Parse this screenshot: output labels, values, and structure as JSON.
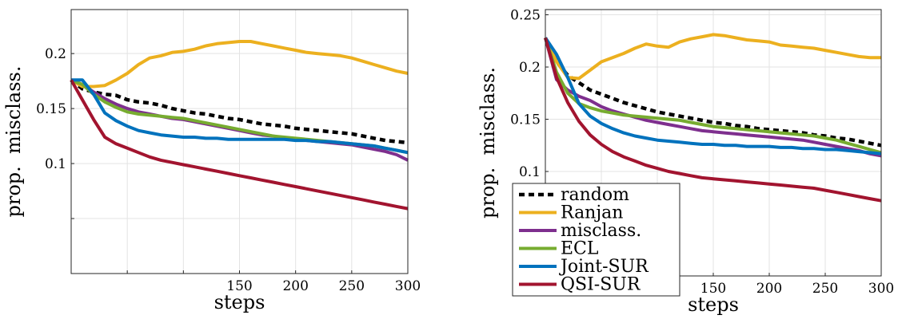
{
  "chart_data": [
    {
      "type": "line",
      "xlabel": "steps",
      "ylabel": "prop.  misclass.",
      "xlim": [
        0,
        300
      ],
      "ylim": [
        0,
        0.24
      ],
      "xticks": [
        150,
        200,
        250,
        300
      ],
      "yticks": [
        0.05,
        0.1,
        0.15,
        0.2
      ],
      "ytick_labels": [
        "",
        "0.1",
        "0.15",
        "0.2"
      ],
      "grid": true,
      "series": [
        {
          "name": "random",
          "color": "#000000",
          "dash": true,
          "x": [
            0,
            10,
            20,
            30,
            40,
            50,
            60,
            70,
            80,
            90,
            100,
            110,
            120,
            130,
            140,
            150,
            160,
            170,
            180,
            190,
            200,
            210,
            220,
            230,
            240,
            250,
            260,
            270,
            280,
            290,
            300
          ],
          "y": [
            0.176,
            0.168,
            0.165,
            0.163,
            0.162,
            0.158,
            0.156,
            0.155,
            0.153,
            0.15,
            0.148,
            0.146,
            0.145,
            0.143,
            0.141,
            0.14,
            0.138,
            0.136,
            0.135,
            0.134,
            0.132,
            0.131,
            0.13,
            0.129,
            0.128,
            0.127,
            0.125,
            0.123,
            0.121,
            0.12,
            0.119
          ]
        },
        {
          "name": "Ranjan",
          "color": "#ECB01F",
          "dash": false,
          "x": [
            0,
            10,
            20,
            30,
            40,
            50,
            60,
            70,
            80,
            90,
            100,
            110,
            120,
            130,
            140,
            150,
            160,
            170,
            180,
            190,
            200,
            210,
            220,
            230,
            240,
            250,
            260,
            270,
            280,
            290,
            300
          ],
          "y": [
            0.176,
            0.17,
            0.17,
            0.171,
            0.176,
            0.182,
            0.19,
            0.196,
            0.198,
            0.201,
            0.202,
            0.204,
            0.207,
            0.209,
            0.21,
            0.211,
            0.211,
            0.209,
            0.207,
            0.205,
            0.203,
            0.201,
            0.2,
            0.199,
            0.198,
            0.196,
            0.193,
            0.19,
            0.187,
            0.184,
            0.182
          ]
        },
        {
          "name": "misclass.",
          "color": "#7E2F8E",
          "dash": false,
          "x": [
            0,
            10,
            20,
            30,
            40,
            50,
            60,
            70,
            80,
            90,
            100,
            110,
            120,
            130,
            140,
            150,
            160,
            170,
            180,
            190,
            200,
            210,
            220,
            230,
            240,
            250,
            260,
            270,
            280,
            290,
            300
          ],
          "y": [
            0.176,
            0.172,
            0.165,
            0.159,
            0.154,
            0.15,
            0.147,
            0.145,
            0.143,
            0.141,
            0.14,
            0.138,
            0.136,
            0.134,
            0.132,
            0.13,
            0.128,
            0.126,
            0.125,
            0.123,
            0.122,
            0.121,
            0.12,
            0.119,
            0.118,
            0.117,
            0.115,
            0.113,
            0.111,
            0.108,
            0.103
          ]
        },
        {
          "name": "ECL",
          "color": "#77AC30",
          "dash": false,
          "x": [
            0,
            10,
            20,
            30,
            40,
            50,
            60,
            70,
            80,
            90,
            100,
            110,
            120,
            130,
            140,
            150,
            160,
            170,
            180,
            190,
            200,
            210,
            220,
            230,
            240,
            250,
            260,
            270,
            280,
            290,
            300
          ],
          "y": [
            0.176,
            0.172,
            0.163,
            0.156,
            0.151,
            0.147,
            0.145,
            0.144,
            0.143,
            0.142,
            0.141,
            0.139,
            0.137,
            0.135,
            0.133,
            0.131,
            0.129,
            0.127,
            0.125,
            0.124,
            0.123,
            0.122,
            0.121,
            0.12,
            0.119,
            0.118,
            0.117,
            0.116,
            0.114,
            0.112,
            0.11
          ]
        },
        {
          "name": "Joint-SUR",
          "color": "#0072BD",
          "dash": false,
          "x": [
            0,
            10,
            20,
            30,
            40,
            50,
            60,
            70,
            80,
            90,
            100,
            110,
            120,
            130,
            140,
            150,
            160,
            170,
            180,
            190,
            200,
            210,
            220,
            230,
            240,
            250,
            260,
            270,
            280,
            290,
            300
          ],
          "y": [
            0.176,
            0.176,
            0.163,
            0.146,
            0.139,
            0.134,
            0.13,
            0.128,
            0.126,
            0.125,
            0.124,
            0.124,
            0.123,
            0.123,
            0.122,
            0.122,
            0.122,
            0.122,
            0.122,
            0.122,
            0.121,
            0.121,
            0.12,
            0.12,
            0.119,
            0.118,
            0.117,
            0.116,
            0.114,
            0.112,
            0.11
          ]
        },
        {
          "name": "QSI-SUR",
          "color": "#A2142F",
          "dash": false,
          "x": [
            0,
            10,
            20,
            30,
            40,
            50,
            60,
            70,
            80,
            90,
            100,
            110,
            120,
            130,
            140,
            150,
            160,
            170,
            180,
            190,
            200,
            210,
            220,
            230,
            240,
            250,
            260,
            270,
            280,
            290,
            300
          ],
          "y": [
            0.176,
            0.158,
            0.14,
            0.124,
            0.118,
            0.114,
            0.11,
            0.106,
            0.103,
            0.101,
            0.099,
            0.097,
            0.095,
            0.093,
            0.091,
            0.089,
            0.087,
            0.085,
            0.083,
            0.081,
            0.079,
            0.077,
            0.075,
            0.073,
            0.071,
            0.069,
            0.067,
            0.065,
            0.063,
            0.061,
            0.059
          ]
        }
      ]
    },
    {
      "type": "line",
      "xlabel": "steps",
      "ylabel": "prop.  misclass.",
      "xlim": [
        0,
        300
      ],
      "ylim": [
        0,
        0.255
      ],
      "xticks": [
        150,
        200,
        250,
        300
      ],
      "yticks": [
        0.1,
        0.15,
        0.2,
        0.25
      ],
      "ytick_labels": [
        "0.1",
        "0.15",
        "0.2",
        "0.25"
      ],
      "grid": true,
      "legend": {
        "position": "bottom-left",
        "entries": [
          "random",
          "Ranjan",
          "misclass.",
          "ECL",
          "Joint-SUR",
          "QSI-SUR"
        ]
      },
      "series": [
        {
          "name": "random",
          "color": "#000000",
          "dash": true,
          "x": [
            0,
            10,
            20,
            30,
            40,
            50,
            60,
            70,
            80,
            90,
            100,
            110,
            120,
            130,
            140,
            150,
            160,
            170,
            180,
            190,
            200,
            210,
            220,
            230,
            240,
            250,
            260,
            270,
            280,
            290,
            300
          ],
          "y": [
            0.228,
            0.205,
            0.192,
            0.185,
            0.178,
            0.174,
            0.17,
            0.166,
            0.163,
            0.16,
            0.157,
            0.155,
            0.153,
            0.151,
            0.149,
            0.147,
            0.146,
            0.144,
            0.143,
            0.141,
            0.14,
            0.139,
            0.138,
            0.137,
            0.135,
            0.134,
            0.132,
            0.131,
            0.129,
            0.127,
            0.125
          ]
        },
        {
          "name": "Ranjan",
          "color": "#ECB01F",
          "dash": false,
          "x": [
            0,
            10,
            20,
            30,
            40,
            50,
            60,
            70,
            80,
            90,
            100,
            110,
            120,
            130,
            140,
            150,
            160,
            170,
            180,
            190,
            200,
            210,
            220,
            230,
            240,
            250,
            260,
            270,
            280,
            290,
            300
          ],
          "y": [
            0.228,
            0.205,
            0.19,
            0.189,
            0.197,
            0.205,
            0.209,
            0.213,
            0.218,
            0.222,
            0.22,
            0.219,
            0.224,
            0.227,
            0.229,
            0.231,
            0.23,
            0.228,
            0.226,
            0.225,
            0.224,
            0.221,
            0.22,
            0.219,
            0.218,
            0.216,
            0.214,
            0.212,
            0.21,
            0.209,
            0.209
          ]
        },
        {
          "name": "misclass.",
          "color": "#7E2F8E",
          "dash": false,
          "x": [
            0,
            10,
            20,
            30,
            40,
            50,
            60,
            70,
            80,
            90,
            100,
            110,
            120,
            130,
            140,
            150,
            160,
            170,
            180,
            190,
            200,
            210,
            220,
            230,
            240,
            250,
            260,
            270,
            280,
            290,
            300
          ],
          "y": [
            0.228,
            0.188,
            0.178,
            0.172,
            0.168,
            0.162,
            0.158,
            0.155,
            0.152,
            0.149,
            0.147,
            0.145,
            0.143,
            0.141,
            0.139,
            0.138,
            0.137,
            0.136,
            0.135,
            0.134,
            0.133,
            0.132,
            0.131,
            0.13,
            0.128,
            0.126,
            0.124,
            0.122,
            0.12,
            0.117,
            0.115
          ]
        },
        {
          "name": "ECL",
          "color": "#77AC30",
          "dash": false,
          "x": [
            0,
            10,
            20,
            30,
            40,
            50,
            60,
            70,
            80,
            90,
            100,
            110,
            120,
            130,
            140,
            150,
            160,
            170,
            180,
            190,
            200,
            210,
            220,
            230,
            240,
            250,
            260,
            270,
            280,
            290,
            300
          ],
          "y": [
            0.228,
            0.195,
            0.175,
            0.165,
            0.161,
            0.158,
            0.156,
            0.154,
            0.153,
            0.152,
            0.151,
            0.15,
            0.149,
            0.147,
            0.145,
            0.143,
            0.142,
            0.141,
            0.14,
            0.139,
            0.138,
            0.137,
            0.136,
            0.135,
            0.134,
            0.132,
            0.13,
            0.127,
            0.124,
            0.121,
            0.118
          ]
        },
        {
          "name": "Joint-SUR",
          "color": "#0072BD",
          "dash": false,
          "x": [
            0,
            10,
            20,
            30,
            40,
            50,
            60,
            70,
            80,
            90,
            100,
            110,
            120,
            130,
            140,
            150,
            160,
            170,
            180,
            190,
            200,
            210,
            220,
            230,
            240,
            250,
            260,
            270,
            280,
            290,
            300
          ],
          "y": [
            0.228,
            0.212,
            0.19,
            0.165,
            0.153,
            0.146,
            0.141,
            0.137,
            0.134,
            0.132,
            0.13,
            0.129,
            0.128,
            0.127,
            0.126,
            0.126,
            0.125,
            0.125,
            0.124,
            0.124,
            0.124,
            0.123,
            0.123,
            0.122,
            0.122,
            0.121,
            0.121,
            0.12,
            0.119,
            0.118,
            0.117
          ]
        },
        {
          "name": "QSI-SUR",
          "color": "#A2142F",
          "dash": false,
          "x": [
            0,
            10,
            20,
            30,
            40,
            50,
            60,
            70,
            80,
            90,
            100,
            110,
            120,
            130,
            140,
            150,
            160,
            170,
            180,
            190,
            200,
            210,
            220,
            230,
            240,
            250,
            260,
            270,
            280,
            290,
            300
          ],
          "y": [
            0.228,
            0.19,
            0.166,
            0.148,
            0.135,
            0.126,
            0.119,
            0.114,
            0.11,
            0.106,
            0.103,
            0.1,
            0.098,
            0.096,
            0.094,
            0.093,
            0.092,
            0.091,
            0.09,
            0.089,
            0.088,
            0.087,
            0.086,
            0.085,
            0.084,
            0.082,
            0.08,
            0.078,
            0.076,
            0.074,
            0.072
          ]
        }
      ]
    }
  ]
}
